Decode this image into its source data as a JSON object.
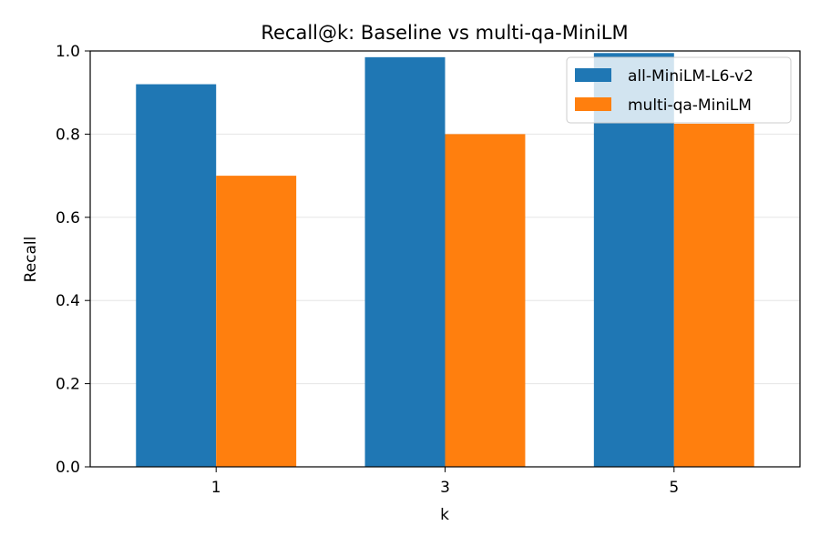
{
  "chart_data": {
    "type": "bar",
    "title": "Recall@k: Baseline vs multi-qa-MiniLM",
    "xlabel": "k",
    "ylabel": "Recall",
    "categories": [
      "1",
      "3",
      "5"
    ],
    "series": [
      {
        "name": "all-MiniLM-L6-v2",
        "values": [
          0.92,
          0.985,
          0.995
        ],
        "color": "#1f77b4"
      },
      {
        "name": "multi-qa-MiniLM",
        "values": [
          0.7,
          0.8,
          0.825
        ],
        "color": "#ff7f0e"
      }
    ],
    "ylim": [
      0,
      1.0
    ],
    "yticks": [
      "0.0",
      "0.2",
      "0.4",
      "0.6",
      "0.8",
      "1.0"
    ],
    "grid": "y",
    "legend_position": "top-right"
  }
}
